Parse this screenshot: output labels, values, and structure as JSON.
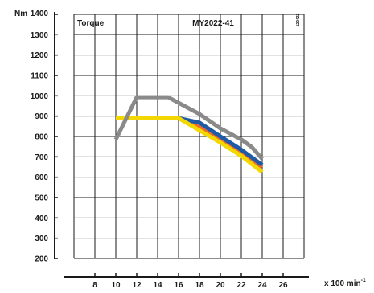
{
  "chart_data": {
    "type": "line",
    "header_left": "Torque",
    "header_center": "MY2022-41",
    "code": "120422",
    "ylabel": "Nm",
    "xlabel_base": "x 100 min",
    "xlabel_exp": "-1",
    "xlim": [
      8,
      26
    ],
    "ylim": [
      200,
      1400
    ],
    "x_ticks": [
      8,
      10,
      12,
      14,
      16,
      18,
      20,
      22,
      24,
      26
    ],
    "y_ticks": [
      200,
      300,
      400,
      500,
      600,
      700,
      800,
      900,
      1000,
      1100,
      1200,
      1300,
      1400
    ],
    "grid": true,
    "series": [
      {
        "color": "#ee6a2a",
        "points": [
          [
            10,
            890
          ],
          [
            12,
            890
          ],
          [
            16,
            890
          ],
          [
            18,
            845
          ],
          [
            20,
            780
          ],
          [
            22,
            720
          ],
          [
            24,
            650
          ]
        ]
      },
      {
        "color": "#1f5aa6",
        "points": [
          [
            16,
            890
          ],
          [
            18,
            868
          ],
          [
            20,
            800
          ],
          [
            22,
            735
          ],
          [
            24,
            660
          ]
        ]
      },
      {
        "color": "#f2d800",
        "points": [
          [
            10,
            890
          ],
          [
            12,
            890
          ],
          [
            16,
            890
          ],
          [
            18,
            830
          ],
          [
            20,
            770
          ],
          [
            22,
            705
          ],
          [
            24,
            625
          ]
        ]
      },
      {
        "color": "#8a8a8a",
        "points": [
          [
            10,
            785
          ],
          [
            12,
            993
          ],
          [
            15,
            993
          ],
          [
            18,
            910
          ],
          [
            20,
            840
          ],
          [
            22,
            785
          ],
          [
            23,
            748
          ],
          [
            24,
            690
          ]
        ]
      }
    ]
  }
}
